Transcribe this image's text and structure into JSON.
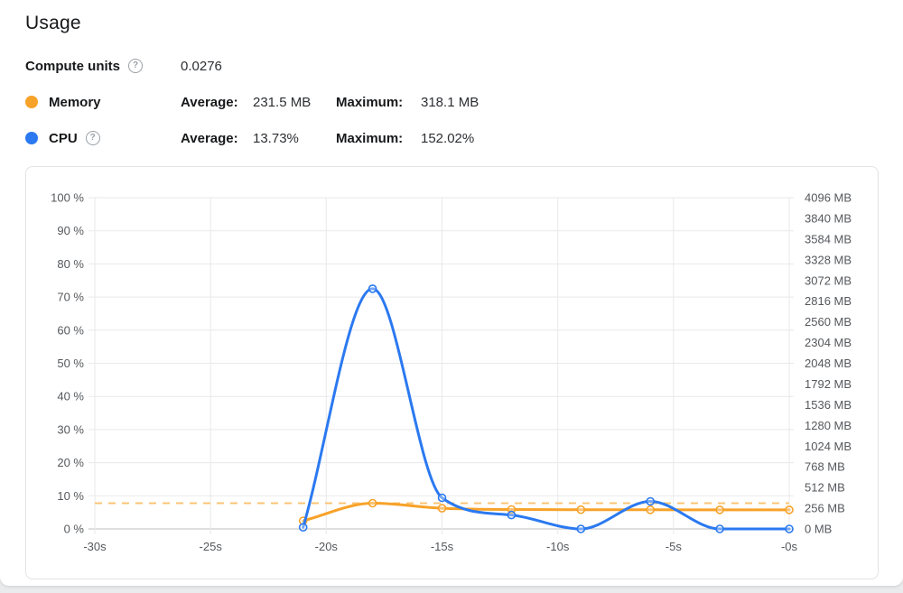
{
  "header": {
    "title": "Usage"
  },
  "stats": {
    "compute": {
      "label": "Compute units",
      "value": "0.0276"
    },
    "memory": {
      "name": "Memory",
      "average_label": "Average:",
      "average": "231.5 MB",
      "maximum_label": "Maximum:",
      "maximum": "318.1 MB"
    },
    "cpu": {
      "name": "CPU",
      "average_label": "Average:",
      "average": "13.73%",
      "maximum_label": "Maximum:",
      "maximum": "152.02%"
    }
  },
  "icons": {
    "help": "?"
  },
  "colors": {
    "memory": "#f7a228",
    "cpu": "#2b79f0",
    "memory_dashed": "#fbc475",
    "grid": "#e9e9ea",
    "grid_baseline": "#bdbfc1",
    "tick_text": "#55585c"
  },
  "chart_data": {
    "type": "line",
    "x_unit": "seconds",
    "x": [
      -21,
      -18,
      -15,
      -12,
      -9,
      -6,
      -3,
      0
    ],
    "series": [
      {
        "name": "Memory",
        "unit": "MB",
        "axis": "right",
        "color": "#f7a228",
        "values": [
          100,
          318.1,
          256,
          240,
          238,
          237,
          236,
          236
        ]
      },
      {
        "name": "CPU",
        "unit": "%",
        "axis": "left",
        "color": "#2b79f0",
        "values": [
          0.5,
          72.5,
          9.4,
          4.2,
          0,
          8.3,
          0,
          0
        ]
      }
    ],
    "reference_line": {
      "series": "Memory",
      "meaning": "memory-maximum",
      "value": 318.1,
      "unit": "MB",
      "style": "dashed",
      "color": "#fbc475"
    },
    "axes": {
      "x": {
        "range": [
          -30,
          0
        ],
        "ticks": [
          "-30s",
          "-25s",
          "-20s",
          "-15s",
          "-10s",
          "-5s",
          "-0s"
        ]
      },
      "y_left": {
        "range": [
          0,
          100
        ],
        "unit": "%",
        "ticks": [
          "0 %",
          "10 %",
          "20 %",
          "30 %",
          "40 %",
          "50 %",
          "60 %",
          "70 %",
          "80 %",
          "90 %",
          "100 %"
        ]
      },
      "y_right": {
        "range": [
          0,
          4096
        ],
        "unit": "MB",
        "ticks": [
          "0 MB",
          "256 MB",
          "512 MB",
          "768 MB",
          "1024 MB",
          "1280 MB",
          "1536 MB",
          "1792 MB",
          "2048 MB",
          "2304 MB",
          "2560 MB",
          "2816 MB",
          "3072 MB",
          "3328 MB",
          "3584 MB",
          "3840 MB",
          "4096 MB"
        ]
      },
      "grid": true,
      "legend_position": "top-left-header"
    },
    "title": "Usage"
  }
}
